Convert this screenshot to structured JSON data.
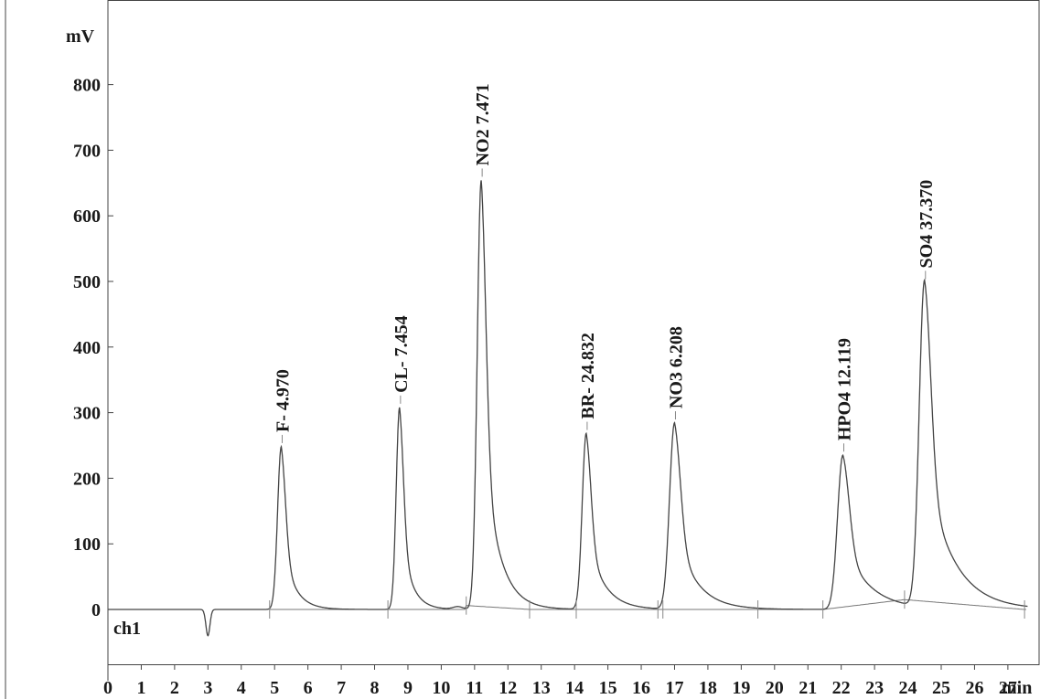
{
  "chart_data": {
    "type": "line",
    "title": "",
    "channel_label": "ch1",
    "y_unit": "mV",
    "x_unit": "min",
    "xlim": [
      0,
      27.6
    ],
    "ylim": [
      -85,
      900
    ],
    "y_ticks": [
      {
        "value": 0,
        "label": "0"
      },
      {
        "value": 100,
        "label": "100"
      },
      {
        "value": 200,
        "label": "200"
      },
      {
        "value": 300,
        "label": "300"
      },
      {
        "value": 400,
        "label": "400"
      },
      {
        "value": 500,
        "label": "500"
      },
      {
        "value": 600,
        "label": "600"
      },
      {
        "value": 700,
        "label": "700"
      },
      {
        "value": 800,
        "label": "800"
      }
    ],
    "x_ticks": [
      {
        "value": 0,
        "label": "0"
      },
      {
        "value": 1,
        "label": "1"
      },
      {
        "value": 2,
        "label": "2"
      },
      {
        "value": 3,
        "label": "3"
      },
      {
        "value": 4,
        "label": "4"
      },
      {
        "value": 5,
        "label": "5"
      },
      {
        "value": 6,
        "label": "6"
      },
      {
        "value": 7,
        "label": "7"
      },
      {
        "value": 8,
        "label": "8"
      },
      {
        "value": 9,
        "label": "9"
      },
      {
        "value": 10,
        "label": "10"
      },
      {
        "value": 11,
        "label": "11"
      },
      {
        "value": 12,
        "label": "12"
      },
      {
        "value": 13,
        "label": "13"
      },
      {
        "value": 14,
        "label": "14"
      },
      {
        "value": 15,
        "label": "15"
      },
      {
        "value": 16,
        "label": "16"
      },
      {
        "value": 17,
        "label": "17"
      },
      {
        "value": 18,
        "label": "18"
      },
      {
        "value": 19,
        "label": "19"
      },
      {
        "value": 20,
        "label": "20"
      },
      {
        "value": 21,
        "label": "21"
      },
      {
        "value": 22,
        "label": "22"
      },
      {
        "value": 23,
        "label": "23"
      },
      {
        "value": 24,
        "label": "24"
      },
      {
        "value": 25,
        "label": "25"
      },
      {
        "value": 26,
        "label": "26"
      },
      {
        "value": 27,
        "label": "27"
      }
    ],
    "dip": {
      "time": 3.0,
      "height": -40
    },
    "peaks": [
      {
        "label": "F- 4.970",
        "time": 5.2,
        "height": 248
      },
      {
        "label": "CL- 7.454",
        "time": 8.75,
        "height": 308
      },
      {
        "label": "NO2 7.471",
        "time": 11.2,
        "height": 654
      },
      {
        "label": "BR- 24.832",
        "time": 14.35,
        "height": 268
      },
      {
        "label": "NO3 6.208",
        "time": 17.0,
        "height": 284
      },
      {
        "label": "HPO4 12.119",
        "time": 22.05,
        "height": 235
      },
      {
        "label": "SO4 37.370",
        "time": 24.5,
        "height": 498
      }
    ],
    "integration_marks": [
      4.85,
      8.4,
      10.75,
      12.65,
      14.05,
      16.5,
      16.65,
      19.5,
      21.45,
      23.9,
      27.5
    ]
  }
}
